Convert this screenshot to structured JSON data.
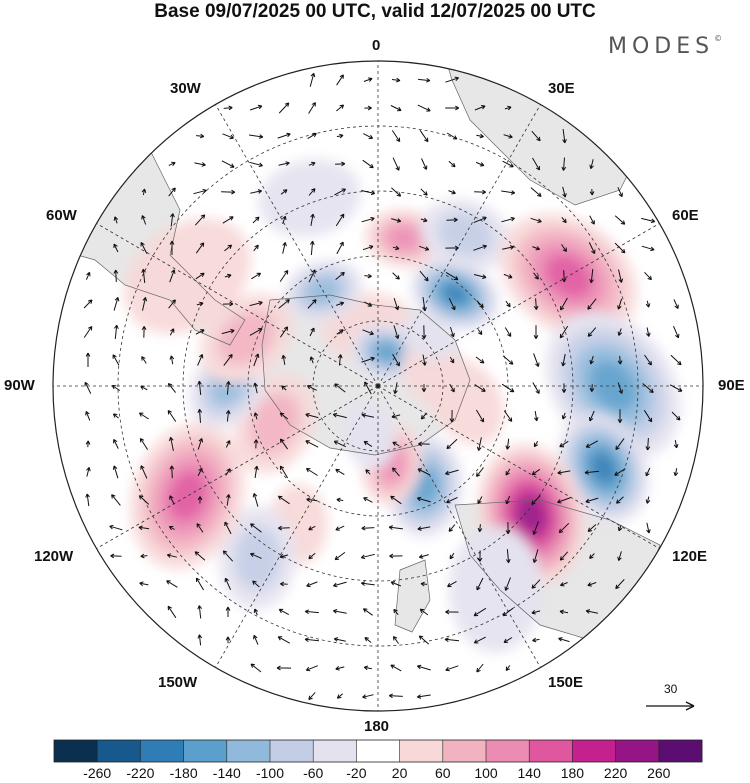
{
  "title": "Base 09/07/2025 00 UTC, valid 12/07/2025 00 UTC",
  "brand": "MODES",
  "brand_mark": "©",
  "longitude_labels": {
    "top": "0",
    "bottom": "180",
    "left": "90W",
    "right": "90E",
    "upper_left_1": "30W",
    "upper_left_2": "60W",
    "upper_right_1": "30E",
    "upper_right_2": "60E",
    "lower_left_1": "120W",
    "lower_left_2": "150W",
    "lower_right_1": "120E",
    "lower_right_2": "150E"
  },
  "vector_reference": {
    "label": "30"
  },
  "colorbar": {
    "ticks": [
      "-260",
      "-220",
      "-180",
      "-140",
      "-100",
      "-60",
      "-20",
      "20",
      "60",
      "100",
      "140",
      "180",
      "220",
      "260"
    ],
    "colors": [
      "#0b2f4e",
      "#17598c",
      "#2e7db6",
      "#5b9fcc",
      "#91b9dc",
      "#c3cde6",
      "#e4e2ef",
      "#ffffff",
      "#f8d8d8",
      "#f2b3c0",
      "#ec8cb3",
      "#e0569f",
      "#c4218e",
      "#961586",
      "#5c0d72"
    ]
  },
  "anomalies": [
    {
      "lon": 10,
      "colat": 150,
      "value": 110,
      "r": 34
    },
    {
      "lon": -10,
      "colat": 60,
      "value": 20,
      "r": 40
    },
    {
      "lon": 15,
      "colat": 35,
      "value": -140,
      "r": 32
    },
    {
      "lon": 40,
      "colat": 120,
      "value": -180,
      "r": 40
    },
    {
      "lon": 30,
      "colat": 175,
      "value": -80,
      "r": 40
    },
    {
      "lon": 60,
      "colat": 220,
      "value": 170,
      "r": 65
    },
    {
      "lon": 90,
      "colat": 235,
      "value": -150,
      "r": 70
    },
    {
      "lon": 110,
      "colat": 240,
      "value": -180,
      "r": 50
    },
    {
      "lon": 130,
      "colat": 200,
      "value": 230,
      "r": 62
    },
    {
      "lon": 150,
      "colat": 235,
      "value": -20,
      "r": 55
    },
    {
      "lon": 155,
      "colat": 110,
      "value": -150,
      "r": 45
    },
    {
      "lon": 170,
      "colat": 80,
      "value": 120,
      "r": 35
    },
    {
      "lon": -150,
      "colat": 160,
      "value": 20,
      "r": 35
    },
    {
      "lon": -145,
      "colat": 210,
      "value": -60,
      "r": 45
    },
    {
      "lon": -120,
      "colat": 220,
      "value": 150,
      "r": 65
    },
    {
      "lon": -110,
      "colat": 110,
      "value": 80,
      "r": 45
    },
    {
      "lon": -90,
      "colat": 150,
      "value": -110,
      "r": 40
    },
    {
      "lon": -70,
      "colat": 140,
      "value": 60,
      "r": 45
    },
    {
      "lon": -30,
      "colat": 110,
      "value": -120,
      "r": 35
    },
    {
      "lon": -60,
      "colat": 220,
      "value": 40,
      "r": 60
    },
    {
      "lon": 100,
      "colat": 90,
      "value": 30,
      "r": 40
    },
    {
      "lon": -170,
      "colat": 50,
      "value": -50,
      "r": 30
    },
    {
      "lon": 80,
      "colat": 60,
      "value": 40,
      "r": 35
    },
    {
      "lon": -20,
      "colat": 200,
      "value": -40,
      "r": 45
    },
    {
      "lon": 45,
      "colat": 70,
      "value": -40,
      "r": 25
    }
  ]
}
